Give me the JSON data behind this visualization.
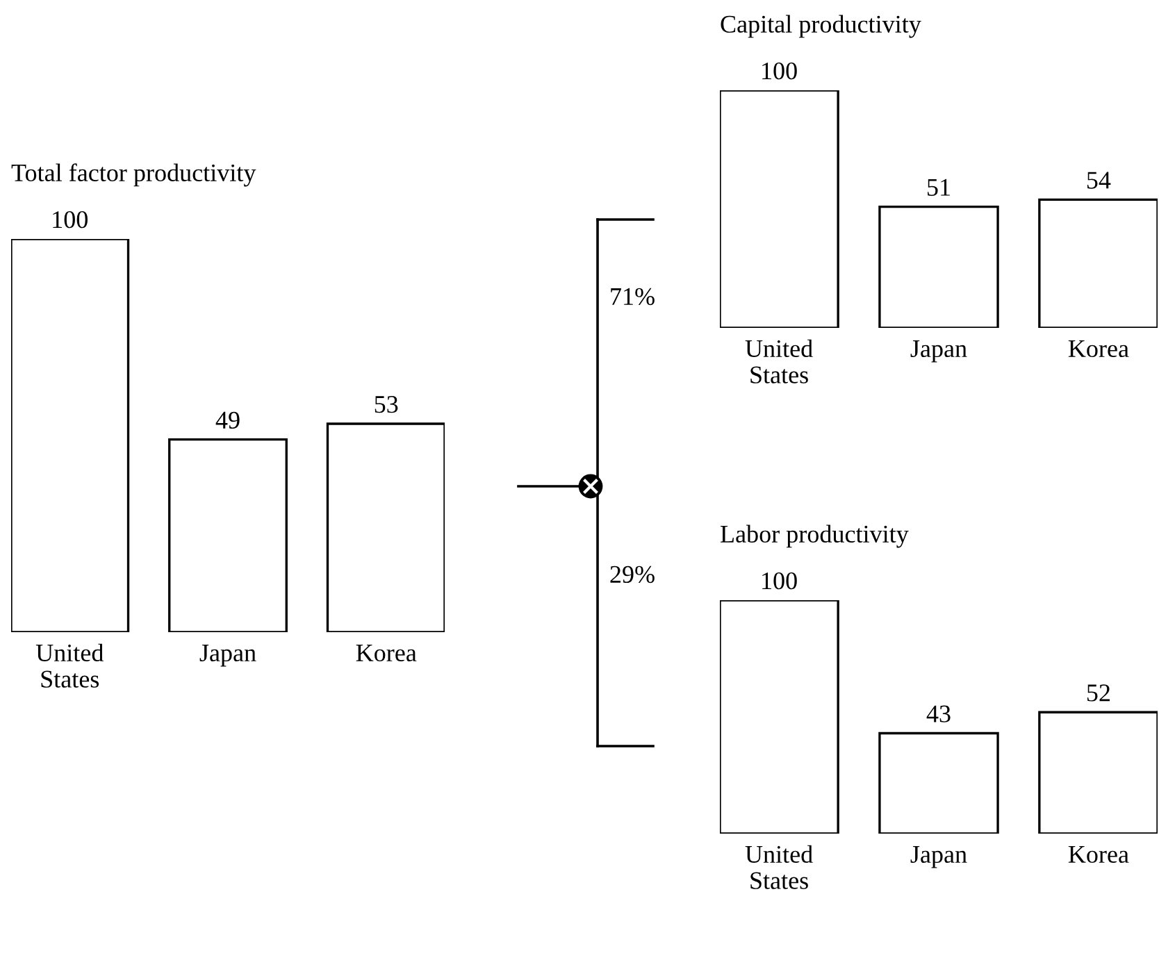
{
  "chart_data": [
    {
      "type": "bar",
      "title": "Total factor productivity",
      "categories": [
        "United\nStates",
        "Japan",
        "Korea"
      ],
      "values": [
        100,
        49,
        53
      ],
      "color": "#ffffff",
      "data_labels": true,
      "grid": false,
      "legend": false
    },
    {
      "type": "bar",
      "title": "Capital productivity",
      "categories": [
        "United\nStates",
        "Japan",
        "Korea"
      ],
      "values": [
        100,
        51,
        54
      ],
      "color": "#ffffff",
      "data_labels": true,
      "grid": false,
      "legend": false
    },
    {
      "type": "bar",
      "title": "Labor productivity",
      "categories": [
        "United\nStates",
        "Japan",
        "Korea"
      ],
      "values": [
        100,
        43,
        52
      ],
      "color": "#ffffff",
      "data_labels": true,
      "grid": false,
      "legend": false
    },
    {
      "type": "other",
      "annotations": [
        "71%",
        "29%"
      ]
    }
  ]
}
